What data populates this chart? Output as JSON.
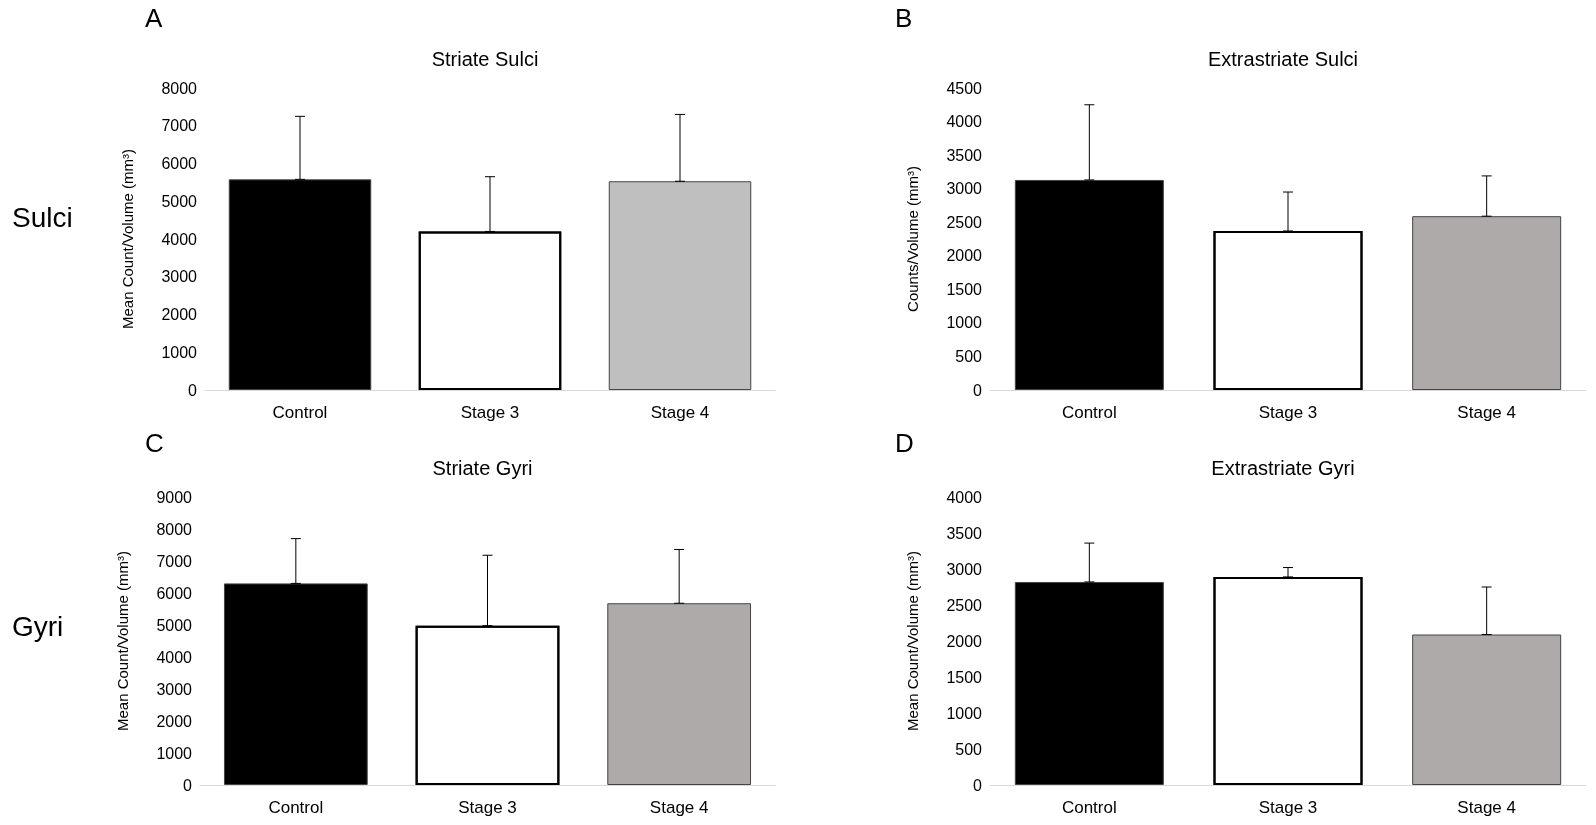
{
  "chart_data": [
    {
      "type": "bar",
      "title": "Striate Sulci",
      "ylabel": "Mean Count/Volume (mm³)",
      "annotations": [
        "A",
        "Sulci"
      ],
      "categories": [
        "Control",
        "Stage 3",
        "Stage 4"
      ],
      "values": [
        5580,
        4200,
        5530
      ],
      "colors": [
        "#000000",
        "#ffffff",
        "#bfbfbf"
      ],
      "errors": [
        [
          5580,
          7250
        ],
        [
          4200,
          5650
        ],
        [
          5530,
          7300
        ]
      ],
      "ylim": [
        0,
        8000
      ],
      "yticks": [
        0,
        1000,
        2000,
        3000,
        4000,
        5000,
        6000,
        7000,
        8000
      ],
      "grid": false
    },
    {
      "type": "bar",
      "title": "Extrastriate Sulci",
      "ylabel": "Counts/Volume (mm³)",
      "annotations": [
        "B"
      ],
      "categories": [
        "Control",
        "Stage 3",
        "Stage 4"
      ],
      "values": [
        3130,
        2370,
        2590
      ],
      "colors": [
        "#000000",
        "#ffffff",
        "#aeaaaa"
      ],
      "errors": [
        [
          3130,
          4250
        ],
        [
          2370,
          2950
        ],
        [
          2590,
          3190
        ]
      ],
      "ylim": [
        0,
        4500
      ],
      "yticks": [
        0,
        500,
        1000,
        1500,
        2000,
        2500,
        3000,
        3500,
        4000,
        4500
      ],
      "grid": false
    },
    {
      "type": "bar",
      "title": "Striate Gyri",
      "ylabel": "Mean Count/Volume (mm³)",
      "annotations": [
        "C",
        "Gyri"
      ],
      "categories": [
        "Control",
        "Stage 3",
        "Stage 4"
      ],
      "values": [
        6300,
        4980,
        5680
      ],
      "colors": [
        "#000000",
        "#ffffff",
        "#aeaaaa"
      ],
      "errors": [
        [
          6300,
          7700
        ],
        [
          4980,
          7180
        ],
        [
          5680,
          7360
        ]
      ],
      "ylim": [
        0,
        9000
      ],
      "yticks": [
        0,
        1000,
        2000,
        3000,
        4000,
        5000,
        6000,
        7000,
        8000,
        9000
      ],
      "grid": false
    },
    {
      "type": "bar",
      "title": "Extrastriate Gyri",
      "ylabel": "Mean Count/Volume (mm³)",
      "annotations": [
        "D"
      ],
      "categories": [
        "Control",
        "Stage 3",
        "Stage 4"
      ],
      "values": [
        2820,
        2890,
        2090
      ],
      "colors": [
        "#000000",
        "#ffffff",
        "#aeaaaa"
      ],
      "errors": [
        [
          2820,
          3360
        ],
        [
          2890,
          3020
        ],
        [
          2090,
          2750
        ]
      ],
      "ylim": [
        0,
        4000
      ],
      "yticks": [
        0,
        500,
        1000,
        1500,
        2000,
        2500,
        3000,
        3500,
        4000
      ],
      "grid": false
    }
  ]
}
